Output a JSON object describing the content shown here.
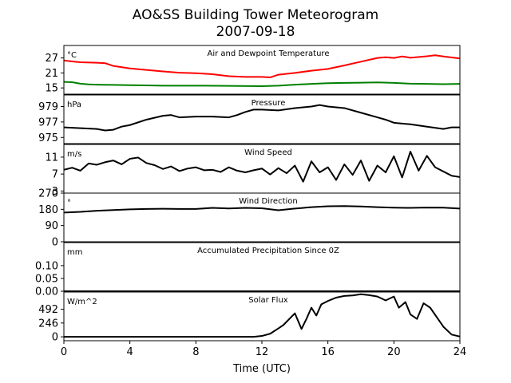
{
  "chart_data": {
    "type": "line",
    "title": "AO&SS Building Tower Meteorogram",
    "subtitle": "2007-09-18",
    "xlabel": "Time (UTC)",
    "xlim": [
      0,
      24
    ],
    "xticks": [
      0,
      4,
      8,
      12,
      16,
      20,
      24
    ],
    "panels": [
      {
        "title": "Air and Dewpoint Temperature",
        "unit": "°C",
        "ylim": [
          12.5,
          32
        ],
        "yticks": [
          15,
          21,
          27
        ],
        "series": [
          {
            "color": "#ff0000",
            "x": [
              0,
              0.5,
              1,
              2,
              2.5,
              3,
              4,
              5,
              6,
              7,
              8,
              9,
              10,
              11,
              12,
              12.5,
              13,
              14,
              15,
              16,
              17,
              18,
              19,
              19.5,
              20,
              20.5,
              21,
              22,
              22.5,
              23,
              24
            ],
            "y": [
              26,
              25.6,
              25.3,
              25.1,
              24.9,
              23.8,
              22.8,
              22.2,
              21.6,
              21.1,
              20.9,
              20.5,
              19.7,
              19.4,
              19.4,
              19.2,
              20.3,
              21.0,
              21.9,
              22.6,
              24.0,
              25.5,
              27.0,
              27.3,
              27.0,
              27.6,
              27.1,
              27.7,
              28.1,
              27.6,
              26.8
            ]
          },
          {
            "color": "#008000",
            "x": [
              0,
              0.5,
              1,
              1.5,
              2,
              3,
              4,
              5,
              6,
              8,
              10,
              12,
              13,
              14,
              15,
              16,
              17,
              18,
              19,
              20,
              21,
              22,
              23,
              24
            ],
            "y": [
              17.4,
              17.3,
              16.7,
              16.4,
              16.3,
              16.2,
              16.1,
              16.0,
              15.9,
              15.9,
              15.8,
              15.7,
              15.9,
              16.3,
              16.6,
              16.9,
              17.0,
              17.1,
              17.2,
              17.0,
              16.7,
              16.6,
              16.5,
              16.6
            ]
          }
        ]
      },
      {
        "title": "Pressure",
        "unit": "hPa",
        "ylim": [
          974.2,
          980.5
        ],
        "yticks": [
          975,
          977,
          979
        ],
        "series": [
          {
            "color": "#000000",
            "x": [
              0,
              1,
              2,
              2.5,
              3,
              3.5,
              4,
              5,
              6,
              6.5,
              7,
              8,
              9,
              10,
              10.5,
              11,
              11.5,
              12,
              13,
              14,
              15,
              15.5,
              16,
              17,
              18,
              19,
              19.5,
              20,
              21,
              22,
              23,
              23.5,
              24
            ],
            "y": [
              976.3,
              976.2,
              976.1,
              975.9,
              976.0,
              976.4,
              976.6,
              977.3,
              977.8,
              977.9,
              977.6,
              977.7,
              977.7,
              977.6,
              977.9,
              978.3,
              978.6,
              978.6,
              978.5,
              978.8,
              979.0,
              979.2,
              979.0,
              978.8,
              978.2,
              977.6,
              977.3,
              976.9,
              976.7,
              976.4,
              976.1,
              976.3,
              976.3
            ]
          }
        ]
      },
      {
        "title": "Wind Speed",
        "unit": "m/s",
        "ylim": [
          2.5,
          14
        ],
        "yticks": [
          3,
          7,
          11
        ],
        "series": [
          {
            "color": "#000000",
            "x": [
              0,
              0.5,
              1,
              1.5,
              2,
              2.5,
              3,
              3.5,
              4,
              4.5,
              5,
              5.5,
              6,
              6.5,
              7,
              7.5,
              8,
              8.5,
              9,
              9.5,
              10,
              10.5,
              11,
              11.5,
              12,
              12.5,
              13,
              13.5,
              14,
              14.5,
              15,
              15.5,
              16,
              16.5,
              17,
              17.5,
              18,
              18.5,
              19,
              19.5,
              20,
              20.5,
              21,
              21.5,
              22,
              22.5,
              23,
              23.5,
              24
            ],
            "y": [
              8,
              8.5,
              7.8,
              9.5,
              9.2,
              9.8,
              10.2,
              9.3,
              10.6,
              10.9,
              9.6,
              9.1,
              8.2,
              8.8,
              7.7,
              8.3,
              8.6,
              7.9,
              8.0,
              7.5,
              8.6,
              7.8,
              7.4,
              7.9,
              8.3,
              6.9,
              8.4,
              7.2,
              9.0,
              5.2,
              10.0,
              7.4,
              8.6,
              5.6,
              9.3,
              6.8,
              10.2,
              5.4,
              9.0,
              7.4,
              11.2,
              6.2,
              12.3,
              7.8,
              11.3,
              8.6,
              7.6,
              6.6,
              6.3
            ]
          }
        ]
      },
      {
        "title": "Wind Direction",
        "unit": "°",
        "ylim": [
          0,
          270
        ],
        "yticks": [
          0,
          90,
          180,
          270
        ],
        "series": [
          {
            "color": "#000000",
            "x": [
              0,
              1,
              2,
              3,
              4,
              5,
              6,
              7,
              8,
              9,
              10,
              11,
              12,
              13,
              14,
              15,
              16,
              17,
              18,
              19,
              20,
              21,
              22,
              23,
              24
            ],
            "y": [
              162,
              166,
              172,
              176,
              180,
              182,
              183,
              182,
              182,
              188,
              185,
              188,
              186,
              175,
              184,
              192,
              197,
              198,
              196,
              192,
              189,
              188,
              190,
              189,
              184
            ]
          }
        ]
      },
      {
        "title": "Accumulated Precipitation Since 0Z",
        "unit": "mm",
        "ylim": [
          0,
          0.19
        ],
        "yticks": [
          0.0,
          0.05,
          0.1
        ],
        "ytick_labels": [
          "0.00",
          "0.05",
          "0.10"
        ],
        "series": [
          {
            "color": "#000000",
            "x": [
              0,
              24
            ],
            "y": [
              0,
              0
            ]
          }
        ]
      },
      {
        "title": "Solar Flux",
        "unit": "W/m^2",
        "ylim": [
          -70,
          800
        ],
        "yticks": [
          0,
          246,
          492
        ],
        "series": [
          {
            "color": "#000000",
            "x": [
              0,
              4,
              8,
              11.5,
              12,
              12.5,
              13,
              13.3,
              13.6,
              14,
              14.4,
              14.7,
              15,
              15.3,
              15.6,
              16,
              16.5,
              17,
              17.5,
              18,
              18.5,
              19,
              19.5,
              20,
              20.3,
              20.7,
              21,
              21.4,
              21.8,
              22.2,
              22.6,
              23,
              23.5,
              24
            ],
            "y": [
              0,
              0,
              0,
              0,
              15,
              55,
              150,
              210,
              300,
              420,
              140,
              320,
              520,
              380,
              580,
              640,
              700,
              730,
              740,
              760,
              745,
              720,
              650,
              720,
              520,
              620,
              400,
              320,
              600,
              520,
              350,
              180,
              40,
              5
            ]
          }
        ]
      }
    ]
  }
}
